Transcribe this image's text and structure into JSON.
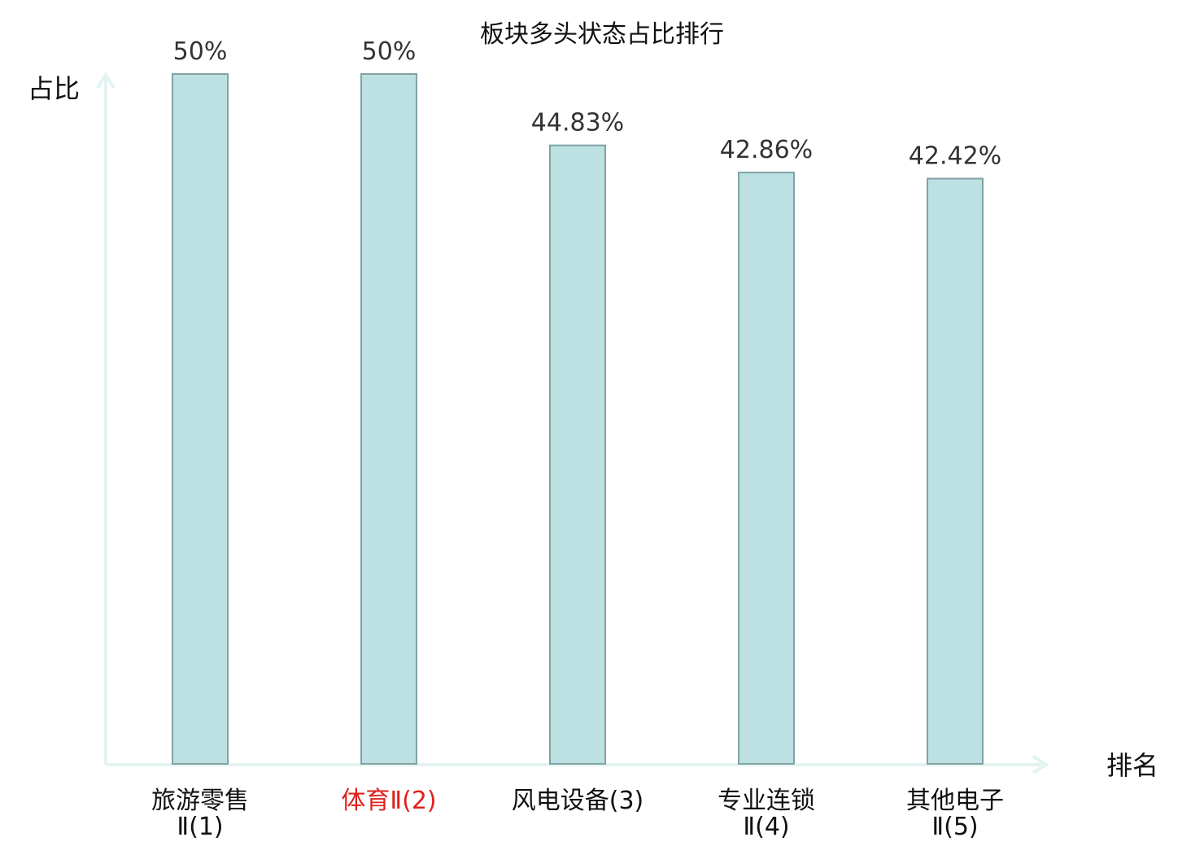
{
  "chart_data": {
    "type": "bar",
    "title": "板块多头状态占比排行",
    "xlabel": "排名",
    "ylabel": "占比",
    "ylim": [
      0,
      50
    ],
    "grid": false,
    "legend": "none",
    "categories": [
      {
        "line1": "旅游零售",
        "line2": "Ⅱ(1)",
        "highlight": false
      },
      {
        "line1": "体育Ⅱ(2)",
        "line2": "",
        "highlight": true
      },
      {
        "line1": "风电设备(3)",
        "line2": "",
        "highlight": false
      },
      {
        "line1": "专业连锁",
        "line2": "Ⅱ(4)",
        "highlight": false
      },
      {
        "line1": "其他电子",
        "line2": "Ⅱ(5)",
        "highlight": false
      }
    ],
    "values": [
      50,
      50,
      44.83,
      42.86,
      42.42
    ],
    "value_labels": [
      "50%",
      "50%",
      "44.83%",
      "42.86%",
      "42.42%"
    ],
    "colors": {
      "bar_fill": "#bde0e2",
      "bar_stroke": "#7fa3a5",
      "axis": "#e2f3f1",
      "highlight_text": "#e0201c"
    }
  }
}
